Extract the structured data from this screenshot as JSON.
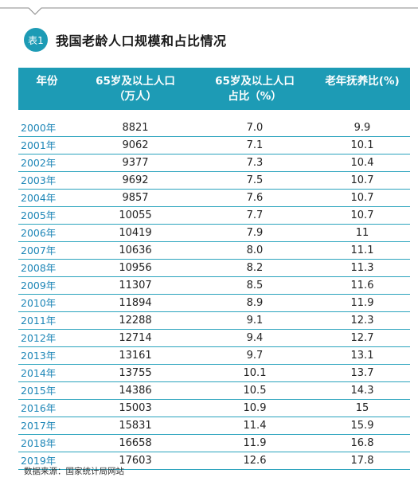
{
  "table": {
    "badge": "表1",
    "title": "我国老龄人口规模和占比情况",
    "headers": {
      "year": "年份",
      "pop_line1": "65岁及以上人口",
      "pop_line2": "（万人）",
      "pct_line1": "65岁及以上人口",
      "pct_line2": "占比（%）",
      "ratio": "老年抚养比(%)"
    },
    "rows": [
      {
        "year": "2000年",
        "pop": "8821",
        "pct": "7.0",
        "ratio": "9.9"
      },
      {
        "year": "2001年",
        "pop": "9062",
        "pct": "7.1",
        "ratio": "10.1"
      },
      {
        "year": "2002年",
        "pop": "9377",
        "pct": "7.3",
        "ratio": "10.4"
      },
      {
        "year": "2003年",
        "pop": "9692",
        "pct": "7.5",
        "ratio": "10.7"
      },
      {
        "year": "2004年",
        "pop": "9857",
        "pct": "7.6",
        "ratio": "10.7"
      },
      {
        "year": "2005年",
        "pop": "10055",
        "pct": "7.7",
        "ratio": "10.7"
      },
      {
        "year": "2006年",
        "pop": "10419",
        "pct": "7.9",
        "ratio": "11"
      },
      {
        "year": "2007年",
        "pop": "10636",
        "pct": "8.0",
        "ratio": "11.1"
      },
      {
        "year": "2008年",
        "pop": "10956",
        "pct": "8.2",
        "ratio": "11.3"
      },
      {
        "year": "2009年",
        "pop": "11307",
        "pct": "8.5",
        "ratio": "11.6"
      },
      {
        "year": "2010年",
        "pop": "11894",
        "pct": "8.9",
        "ratio": "11.9"
      },
      {
        "year": "2011年",
        "pop": "12288",
        "pct": "9.1",
        "ratio": "12.3"
      },
      {
        "year": "2012年",
        "pop": "12714",
        "pct": "9.4",
        "ratio": "12.7"
      },
      {
        "year": "2013年",
        "pop": "13161",
        "pct": "9.7",
        "ratio": "13.1"
      },
      {
        "year": "2014年",
        "pop": "13755",
        "pct": "10.1",
        "ratio": "13.7"
      },
      {
        "year": "2015年",
        "pop": "14386",
        "pct": "10.5",
        "ratio": "14.3"
      },
      {
        "year": "2016年",
        "pop": "15003",
        "pct": "10.9",
        "ratio": "15"
      },
      {
        "year": "2017年",
        "pop": "15831",
        "pct": "11.4",
        "ratio": "15.9"
      },
      {
        "year": "2018年",
        "pop": "16658",
        "pct": "11.9",
        "ratio": "16.8"
      },
      {
        "year": "2019年",
        "pop": "17603",
        "pct": "12.6",
        "ratio": "17.8"
      }
    ],
    "source": "数据来源：国家统计局网站"
  },
  "colors": {
    "accent": "#1d9bb5",
    "year_text": "#1d86b7"
  }
}
